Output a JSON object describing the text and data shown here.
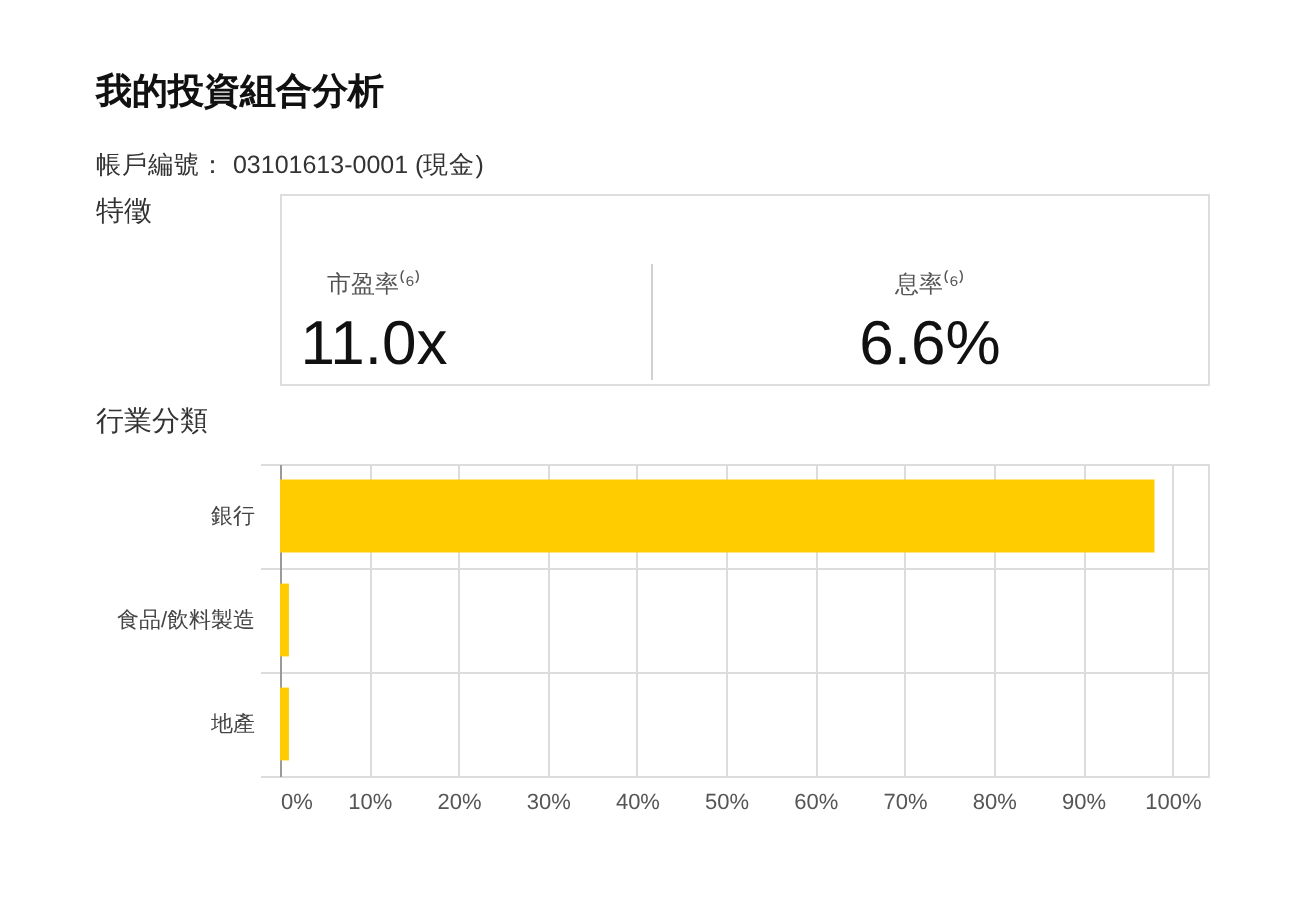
{
  "chart_data": [
    {
      "type": "other",
      "title": "我的投資組合分析",
      "subtitle": "帳戶編號： 03101613-0001 (現金)",
      "annotations": [
        "特徵",
        "市盈率⁽⁶⁾",
        "11.0x",
        "息率⁽⁶⁾",
        "6.6%"
      ]
    },
    {
      "type": "bar",
      "title": "行業分類",
      "orientation": "horizontal",
      "categories": [
        "銀行",
        "食品/飲料製造",
        "地產"
      ],
      "values": [
        98,
        1,
        1
      ],
      "color": "#ffcc00",
      "xlim": [
        0,
        104
      ],
      "xticks": [
        {
          "value": 0,
          "label": "0%"
        },
        {
          "value": 10,
          "label": "10%"
        },
        {
          "value": 20,
          "label": "20%"
        },
        {
          "value": 30,
          "label": "30%"
        },
        {
          "value": 40,
          "label": "40%"
        },
        {
          "value": 50,
          "label": "50%"
        },
        {
          "value": 60,
          "label": "60%"
        },
        {
          "value": 70,
          "label": "70%"
        },
        {
          "value": 80,
          "label": "80%"
        },
        {
          "value": 90,
          "label": "90%"
        },
        {
          "value": 100,
          "label": "100%"
        }
      ],
      "grid": true
    }
  ]
}
